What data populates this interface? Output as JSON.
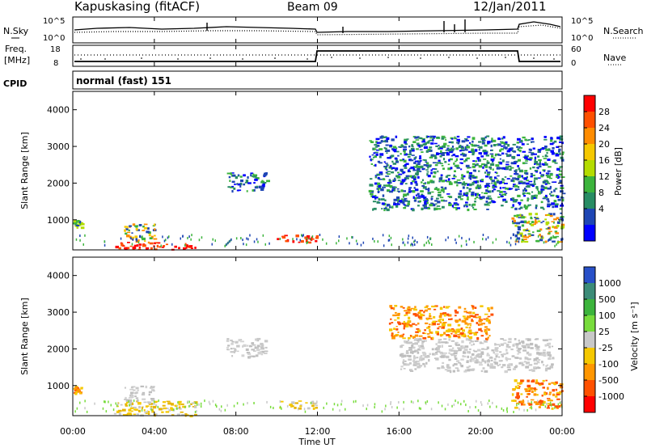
{
  "header": {
    "station": "Kapuskasing (fitACF)",
    "beam": "Beam 09",
    "date": "12/Jan/2011"
  },
  "panels": {
    "nsky": {
      "left_label": "N.Sky",
      "right_label": "N.Search",
      "left_ticks": [
        "10^5",
        "10^0"
      ],
      "right_ticks": [
        "10^5",
        "10^0"
      ]
    },
    "freq": {
      "left_label_top": "Freq.",
      "left_label_bottom": "[MHz]",
      "right_label": "Nave",
      "left_ticks": [
        "18",
        "8"
      ],
      "right_ticks": [
        "60",
        "0"
      ]
    },
    "cpid": {
      "label": "CPID",
      "text": "normal (fast) 151"
    }
  },
  "colorbars": {
    "power": {
      "label": "Power [dB]",
      "ticks": [
        "28",
        "24",
        "20",
        "16",
        "12",
        "8",
        "4"
      ],
      "colors": [
        "#ff0000",
        "#ff5000",
        "#ff8c00",
        "#f5c800",
        "#b4dc00",
        "#3cb43c",
        "#288c64",
        "#1e46b4",
        "#0000ff"
      ]
    },
    "velocity": {
      "label": "Velocity [m s⁻¹]",
      "ticks": [
        "1000",
        "500",
        "100",
        "25",
        "-25",
        "-100",
        "-500",
        "-1000"
      ],
      "colors": [
        "#2850c8",
        "#3c8c78",
        "#3cb43c",
        "#78dc3c",
        "#c8c8c8",
        "#f5c800",
        "#ff9600",
        "#ff5000",
        "#ff0000"
      ]
    }
  },
  "x_axis": {
    "label": "Time UT",
    "ticks": [
      "00:00",
      "04:00",
      "08:00",
      "12:00",
      "16:00",
      "20:00",
      "00:00"
    ]
  },
  "chart_data": [
    {
      "type": "heatmap",
      "name": "power",
      "ylabel": "Slant Range [km]",
      "xlabel": "",
      "x_range_hours": [
        0,
        24
      ],
      "ylim": [
        180,
        4500
      ],
      "y_ticks": [
        1000,
        2000,
        3000,
        4000
      ],
      "regions": [
        {
          "t": [
            0.0,
            0.4
          ],
          "r": [
            800,
            1000
          ],
          "level": "12-20 dB"
        },
        {
          "t": [
            2.0,
            6.0
          ],
          "r": [
            200,
            400
          ],
          "level": "28+ dB"
        },
        {
          "t": [
            2.5,
            4.0
          ],
          "r": [
            400,
            900
          ],
          "level": "8-20 dB"
        },
        {
          "t": [
            7.5,
            9.5
          ],
          "r": [
            1800,
            2300
          ],
          "level": "4-16 dB"
        },
        {
          "t": [
            10.0,
            12.0
          ],
          "r": [
            400,
            600
          ],
          "level": "28+ dB"
        },
        {
          "t": [
            14.5,
            24.0
          ],
          "r": [
            1300,
            3300
          ],
          "level": "4-20 dB"
        },
        {
          "t": [
            21.5,
            24.0
          ],
          "r": [
            400,
            1200
          ],
          "level": "8-24 dB"
        }
      ]
    },
    {
      "type": "heatmap",
      "name": "velocity",
      "ylabel": "Slant Range [km]",
      "xlabel": "Time UT",
      "x_range_hours": [
        0,
        24
      ],
      "ylim": [
        180,
        4500
      ],
      "y_ticks": [
        1000,
        2000,
        3000,
        4000
      ],
      "regions": [
        {
          "t": [
            0.0,
            0.4
          ],
          "r": [
            800,
            1000
          ],
          "velocity": "-100 to -500"
        },
        {
          "t": [
            2.0,
            6.0
          ],
          "r": [
            200,
            600
          ],
          "velocity": "-25 to -100"
        },
        {
          "t": [
            2.5,
            4.0
          ],
          "r": [
            600,
            1000
          ],
          "velocity": "-25 to 25"
        },
        {
          "t": [
            7.5,
            9.5
          ],
          "r": [
            1800,
            2300
          ],
          "velocity": "-25 to 25"
        },
        {
          "t": [
            10.0,
            12.0
          ],
          "r": [
            400,
            600
          ],
          "velocity": "-25 to -100"
        },
        {
          "t": [
            15.5,
            20.5
          ],
          "r": [
            2300,
            3200
          ],
          "velocity": "-100 to -500"
        },
        {
          "t": [
            16.0,
            23.5
          ],
          "r": [
            1400,
            2300
          ],
          "velocity": "-25 to 25"
        },
        {
          "t": [
            21.5,
            24.0
          ],
          "r": [
            400,
            1200
          ],
          "velocity": "-100 to -500"
        }
      ]
    }
  ]
}
